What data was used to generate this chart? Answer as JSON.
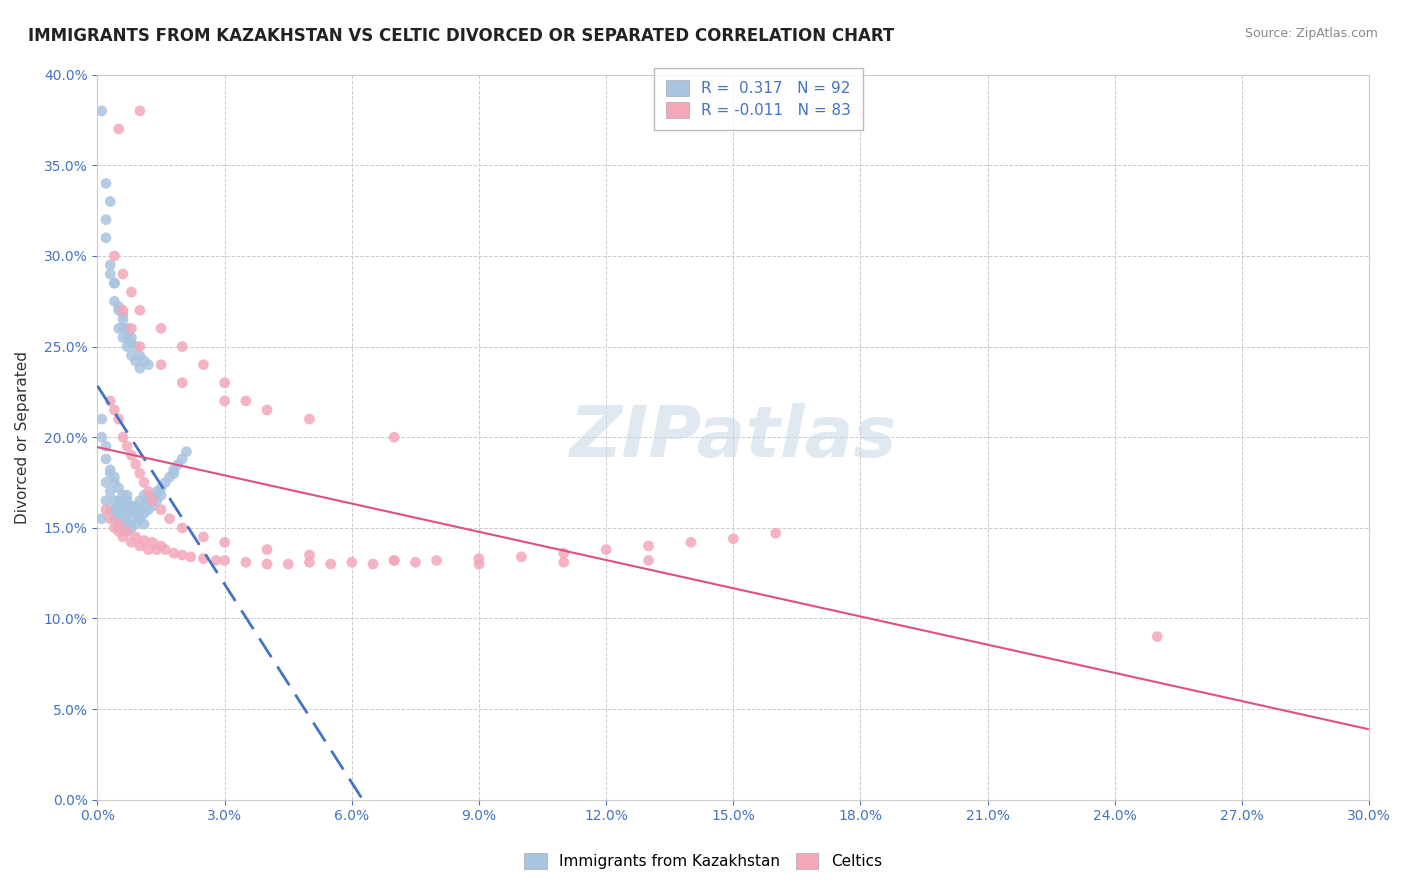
{
  "title": "IMMIGRANTS FROM KAZAKHSTAN VS CELTIC DIVORCED OR SEPARATED CORRELATION CHART",
  "source_text": "Source: ZipAtlas.com",
  "xlabel": "",
  "ylabel": "Divorced or Separated",
  "legend_label1": "Immigrants from Kazakhstan",
  "legend_label2": "Celtics",
  "R1": 0.317,
  "N1": 92,
  "R2": -0.011,
  "N2": 83,
  "xlim": [
    0.0,
    0.3
  ],
  "ylim": [
    0.0,
    0.4
  ],
  "xticks": [
    0.0,
    0.03,
    0.06,
    0.09,
    0.12,
    0.15,
    0.18,
    0.21,
    0.24,
    0.27,
    0.3
  ],
  "yticks": [
    0.0,
    0.05,
    0.1,
    0.15,
    0.2,
    0.25,
    0.3,
    0.35,
    0.4
  ],
  "color_blue": "#a8c4e0",
  "color_pink": "#f4a7b9",
  "trend_blue": "#4472c4",
  "trend_pink": "#e05080",
  "watermark": "ZIPatlas",
  "blue_points_x": [
    0.001,
    0.002,
    0.002,
    0.003,
    0.003,
    0.003,
    0.004,
    0.004,
    0.004,
    0.004,
    0.005,
    0.005,
    0.005,
    0.005,
    0.006,
    0.006,
    0.006,
    0.006,
    0.007,
    0.007,
    0.007,
    0.007,
    0.007,
    0.008,
    0.008,
    0.008,
    0.009,
    0.009,
    0.009,
    0.01,
    0.01,
    0.01,
    0.011,
    0.011,
    0.011,
    0.012,
    0.012,
    0.013,
    0.013,
    0.014,
    0.014,
    0.015,
    0.015,
    0.016,
    0.017,
    0.018,
    0.018,
    0.019,
    0.02,
    0.021,
    0.003,
    0.004,
    0.005,
    0.005,
    0.006,
    0.006,
    0.007,
    0.007,
    0.008,
    0.008,
    0.009,
    0.009,
    0.01,
    0.01,
    0.011,
    0.012,
    0.002,
    0.003,
    0.004,
    0.004,
    0.005,
    0.006,
    0.006,
    0.007,
    0.008,
    0.002,
    0.003,
    0.002,
    0.001,
    0.001,
    0.001,
    0.002,
    0.002,
    0.003,
    0.004,
    0.005,
    0.006,
    0.007,
    0.008,
    0.009,
    0.01,
    0.011
  ],
  "blue_points_y": [
    0.155,
    0.165,
    0.175,
    0.16,
    0.17,
    0.18,
    0.155,
    0.16,
    0.165,
    0.175,
    0.15,
    0.155,
    0.16,
    0.165,
    0.15,
    0.155,
    0.16,
    0.165,
    0.148,
    0.152,
    0.158,
    0.162,
    0.168,
    0.15,
    0.155,
    0.16,
    0.152,
    0.158,
    0.162,
    0.155,
    0.16,
    0.165,
    0.158,
    0.162,
    0.168,
    0.16,
    0.165,
    0.162,
    0.168,
    0.165,
    0.17,
    0.168,
    0.172,
    0.175,
    0.178,
    0.18,
    0.182,
    0.185,
    0.188,
    0.192,
    0.29,
    0.285,
    0.27,
    0.26,
    0.265,
    0.255,
    0.26,
    0.25,
    0.255,
    0.245,
    0.25,
    0.242,
    0.245,
    0.238,
    0.242,
    0.24,
    0.31,
    0.295,
    0.285,
    0.275,
    0.272,
    0.268,
    0.26,
    0.255,
    0.252,
    0.34,
    0.33,
    0.32,
    0.38,
    0.21,
    0.2,
    0.195,
    0.188,
    0.182,
    0.178,
    0.172,
    0.168,
    0.165,
    0.162,
    0.158,
    0.155,
    0.152
  ],
  "pink_points_x": [
    0.002,
    0.003,
    0.004,
    0.005,
    0.005,
    0.006,
    0.007,
    0.008,
    0.009,
    0.01,
    0.011,
    0.012,
    0.013,
    0.014,
    0.015,
    0.016,
    0.018,
    0.02,
    0.022,
    0.025,
    0.028,
    0.03,
    0.035,
    0.04,
    0.045,
    0.05,
    0.055,
    0.06,
    0.065,
    0.07,
    0.075,
    0.08,
    0.09,
    0.1,
    0.11,
    0.12,
    0.13,
    0.14,
    0.15,
    0.16,
    0.003,
    0.004,
    0.005,
    0.006,
    0.007,
    0.008,
    0.009,
    0.01,
    0.011,
    0.012,
    0.013,
    0.015,
    0.017,
    0.02,
    0.025,
    0.03,
    0.04,
    0.05,
    0.07,
    0.09,
    0.11,
    0.13,
    0.006,
    0.008,
    0.01,
    0.015,
    0.02,
    0.03,
    0.05,
    0.07,
    0.004,
    0.006,
    0.008,
    0.01,
    0.015,
    0.02,
    0.025,
    0.03,
    0.035,
    0.04,
    0.005,
    0.01,
    0.25
  ],
  "pink_points_y": [
    0.16,
    0.155,
    0.15,
    0.148,
    0.152,
    0.145,
    0.148,
    0.142,
    0.145,
    0.14,
    0.143,
    0.138,
    0.142,
    0.138,
    0.14,
    0.138,
    0.136,
    0.135,
    0.134,
    0.133,
    0.132,
    0.132,
    0.131,
    0.13,
    0.13,
    0.131,
    0.13,
    0.131,
    0.13,
    0.132,
    0.131,
    0.132,
    0.133,
    0.134,
    0.136,
    0.138,
    0.14,
    0.142,
    0.144,
    0.147,
    0.22,
    0.215,
    0.21,
    0.2,
    0.195,
    0.19,
    0.185,
    0.18,
    0.175,
    0.17,
    0.165,
    0.16,
    0.155,
    0.15,
    0.145,
    0.142,
    0.138,
    0.135,
    0.132,
    0.13,
    0.131,
    0.132,
    0.27,
    0.26,
    0.25,
    0.24,
    0.23,
    0.22,
    0.21,
    0.2,
    0.3,
    0.29,
    0.28,
    0.27,
    0.26,
    0.25,
    0.24,
    0.23,
    0.22,
    0.215,
    0.37,
    0.38,
    0.09
  ]
}
